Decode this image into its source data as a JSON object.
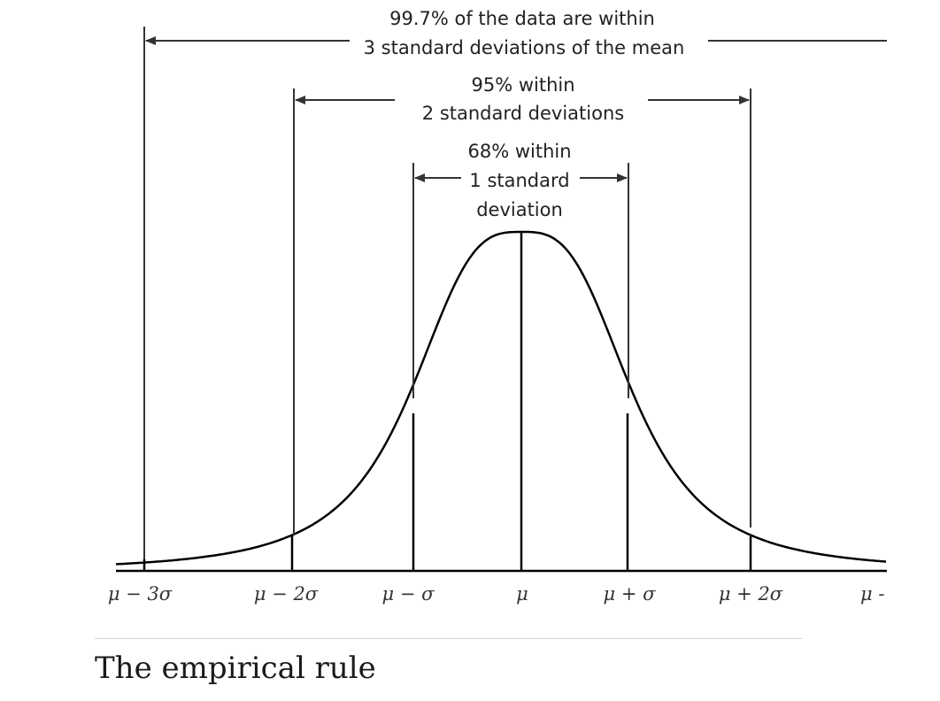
{
  "annotations": {
    "sigma3": {
      "line1": "99.7% of the data are within",
      "line2": "3 standard deviations of the mean"
    },
    "sigma2": {
      "line1": "95% within",
      "line2": "2 standard deviations"
    },
    "sigma1": {
      "line1": "68% within",
      "line2": "1 standard",
      "line3": "deviation"
    }
  },
  "axis_ticks": {
    "minus3": "μ − 3σ",
    "minus2": "μ − 2σ",
    "minus1": "μ − σ",
    "mean": "μ",
    "plus1": "μ + σ",
    "plus2": "μ + 2σ",
    "plus3": "μ -"
  },
  "caption": "The empirical rule",
  "colors": {
    "ink": "#000000",
    "text": "#222222",
    "divider": "#cfcfcf"
  }
}
